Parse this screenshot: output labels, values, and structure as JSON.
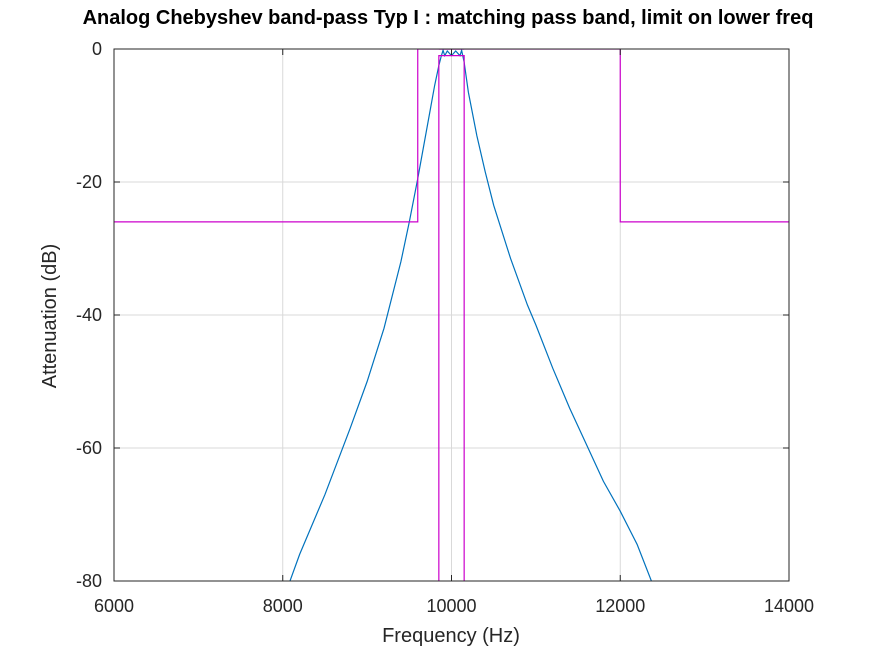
{
  "chart_data": {
    "type": "line",
    "title": "Analog Chebyshev band-pass Typ I : matching pass band, limit on lower freq",
    "xlabel": "Frequency (Hz)",
    "ylabel": "Attenuation (dB)",
    "xlim": [
      6000,
      14000
    ],
    "ylim": [
      -80,
      0
    ],
    "xticks": [
      6000,
      8000,
      10000,
      12000,
      14000
    ],
    "yticks": [
      0,
      -20,
      -40,
      -60,
      -80
    ],
    "xtick_labels": [
      "6000",
      "8000",
      "10000",
      "12000",
      "14000"
    ],
    "ytick_labels": [
      "0",
      "-20",
      "-40",
      "-60",
      "-80"
    ],
    "grid": true,
    "colors": {
      "response": "#0072bd",
      "limits": "#cc00cc"
    },
    "series": [
      {
        "role": "response",
        "x": [
          8000,
          8200,
          8500,
          8800,
          9000,
          9200,
          9400,
          9500,
          9600,
          9700,
          9750,
          9800,
          9850,
          9880,
          9900,
          9920,
          9950,
          10000,
          10050,
          10100,
          10120,
          10150,
          10200,
          10300,
          10400,
          10500,
          10700,
          10900,
          11000,
          11200,
          11400,
          11600,
          11800,
          12000,
          12200,
          12400
        ],
        "y": [
          -83,
          -76,
          -67,
          -57,
          -50,
          -42,
          -32,
          -26,
          -19.5,
          -12.5,
          -9,
          -5.5,
          -2.5,
          -1,
          -0.2,
          -1,
          -0.3,
          -1,
          -0.3,
          -1,
          -0.2,
          -2,
          -6.5,
          -13,
          -18.5,
          -23.5,
          -31.5,
          -38.5,
          -41.5,
          -48,
          -54,
          -59.5,
          -65,
          -69.5,
          -74.5,
          -81
        ]
      },
      {
        "role": "stopband-limit",
        "x": [
          6000,
          9600,
          9600,
          12000,
          12000,
          14000
        ],
        "y": [
          -26,
          -26,
          0,
          0,
          -26,
          -26
        ]
      },
      {
        "role": "passband-limit-lower",
        "x": [
          9850,
          9850,
          10150,
          10150
        ],
        "y": [
          -80,
          -1,
          -1,
          -80
        ]
      },
      {
        "role": "passband-limit-upper",
        "x": [
          9850,
          10150
        ],
        "y": [
          0,
          0
        ]
      }
    ]
  }
}
